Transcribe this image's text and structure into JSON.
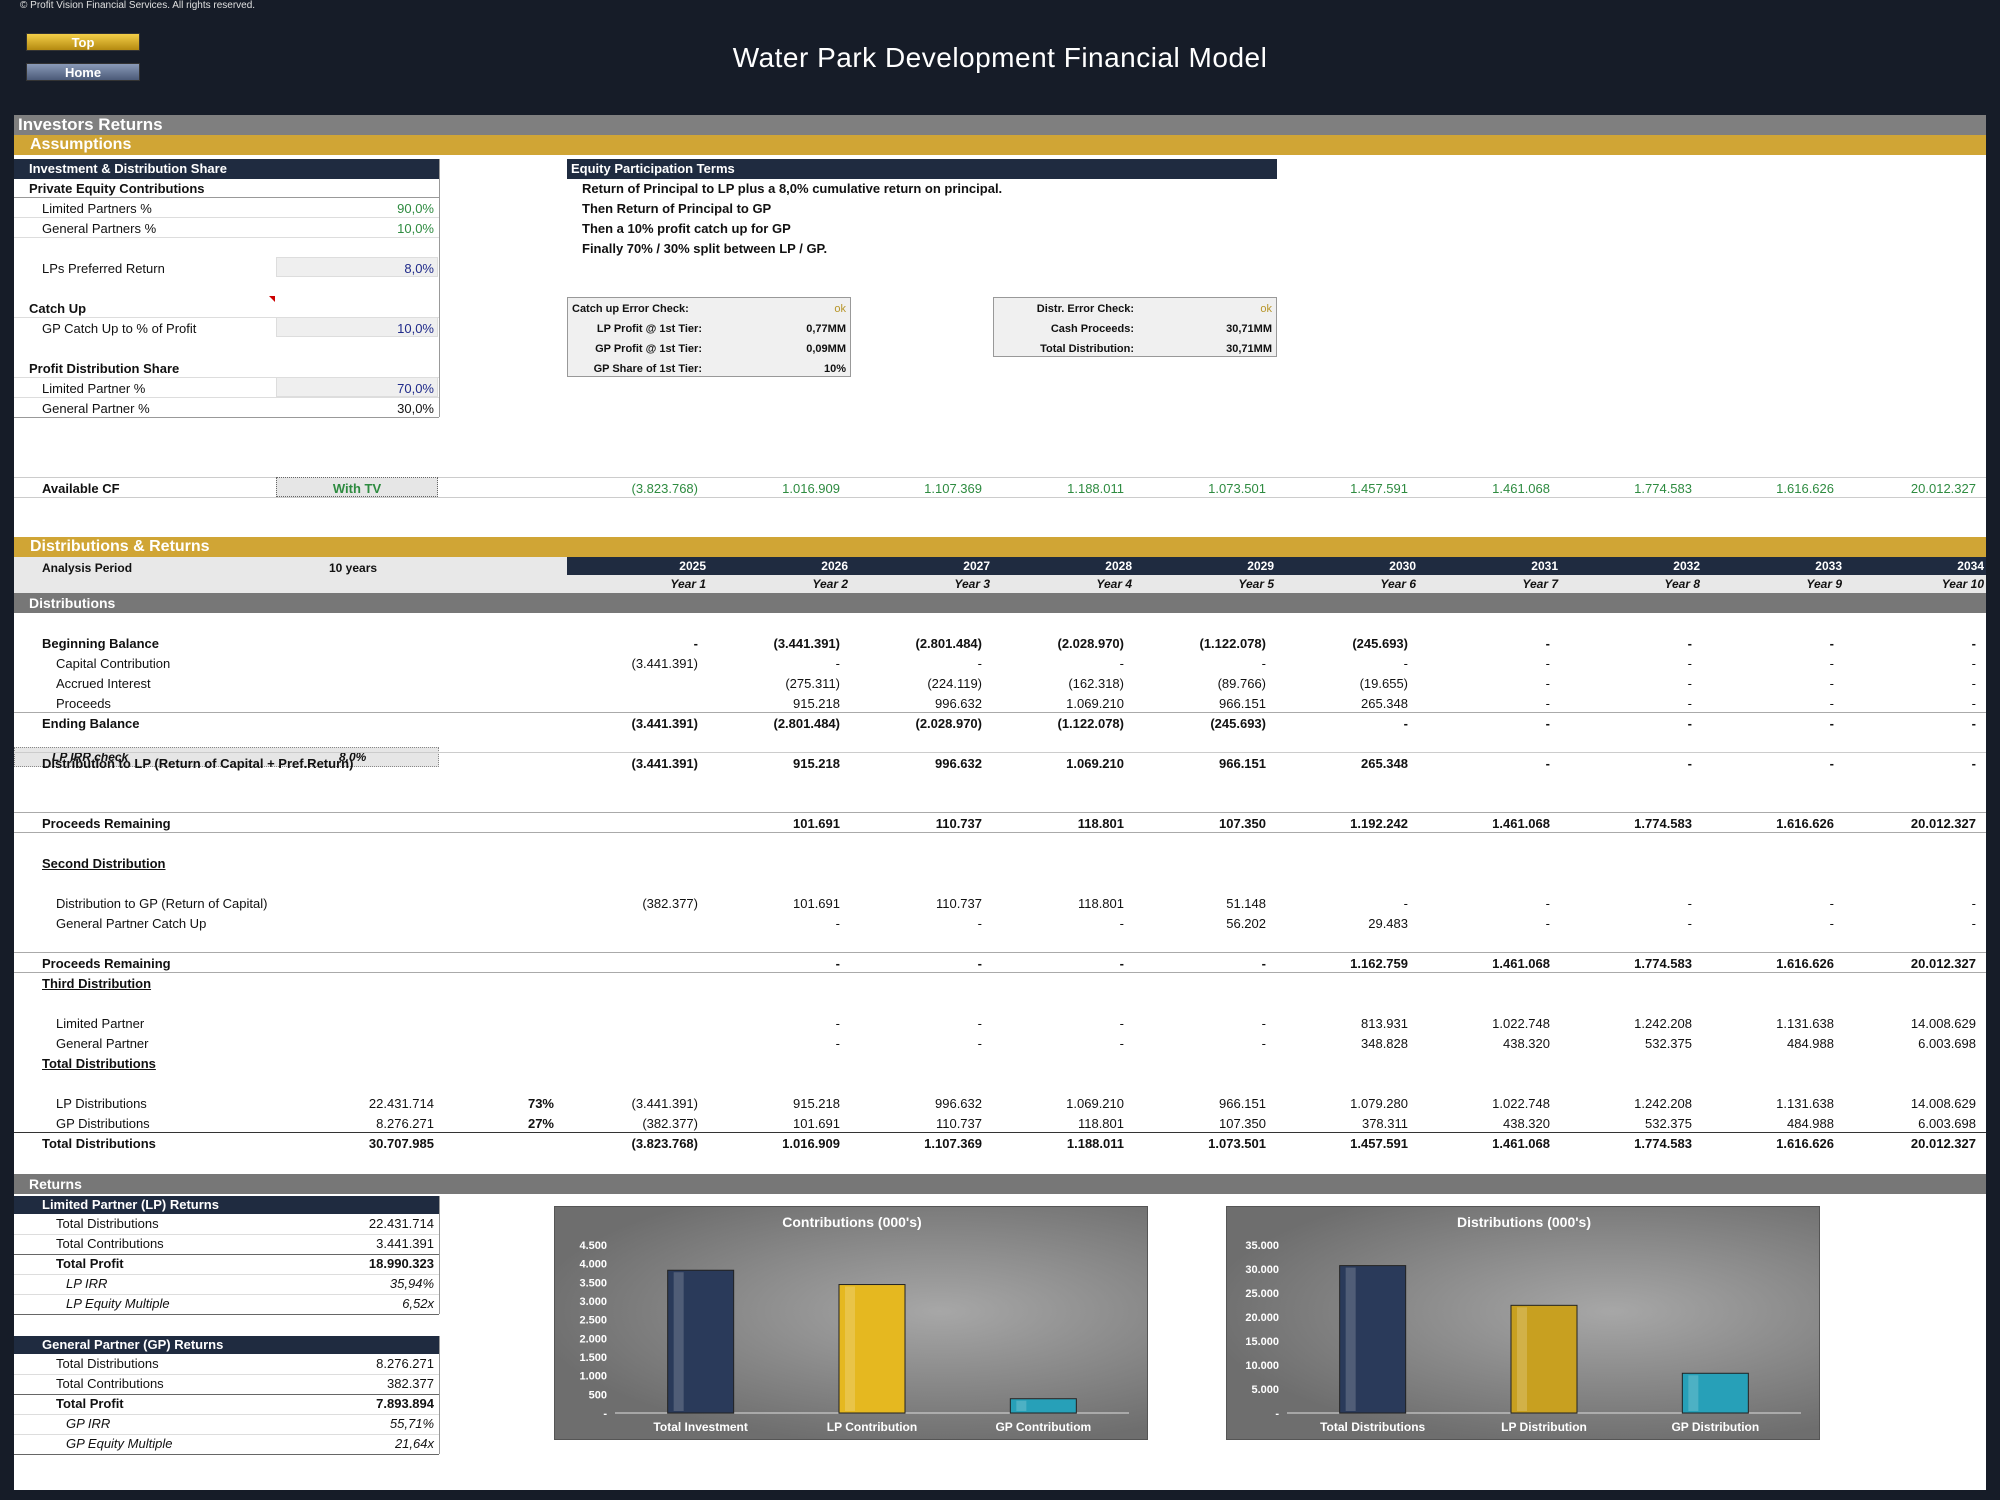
{
  "copyright": "© Profit Vision Financial Services. All rights reserved.",
  "nav": {
    "top": "Top",
    "home": "Home"
  },
  "title": "Water Park Development Financial Model",
  "section_title": "Investors Returns",
  "assumptions_band": "Assumptions",
  "left": {
    "header": "Investment & Distribution Share",
    "private_equity": "Private Equity Contributions",
    "lp_pct_label": "Limited Partners %",
    "lp_pct": "90,0%",
    "gp_pct_label": "General Partners %",
    "gp_pct": "10,0%",
    "pref_label": "LPs Preferred Return",
    "pref": "8,0%",
    "catchup": "Catch Up",
    "gp_catch_label": "GP Catch Up to % of Profit",
    "gp_catch": "10,0%",
    "profit_share": "Profit Distribution Share",
    "lp_share_label": "Limited Partner %",
    "lp_share": "70,0%",
    "gp_share_label": "General Partner %",
    "gp_share": "30,0%"
  },
  "terms": {
    "header": "Equity Participation Terms",
    "lines": [
      "Return of Principal to LP plus a 8,0% cumulative return on principal.",
      "Then Return of Principal to GP",
      "Then a 10% profit catch up for GP",
      "Finally 70% / 30% split between LP / GP."
    ]
  },
  "check1": [
    {
      "label": "Catch up Error Check:",
      "value": "ok"
    },
    {
      "label": "LP Profit @ 1st Tier:",
      "value": "0,77MM"
    },
    {
      "label": "GP Profit @ 1st Tier:",
      "value": "0,09MM"
    },
    {
      "label": "GP Share of 1st Tier:",
      "value": "10%"
    }
  ],
  "check2": [
    {
      "label": "Distr. Error Check:",
      "value": "ok"
    },
    {
      "label": "Cash Proceeds:",
      "value": "30,71MM"
    },
    {
      "label": "Total Distribution:",
      "value": "30,71MM"
    }
  ],
  "available_cf": {
    "label": "Available CF",
    "option": "With TV",
    "values": [
      "(3.823.768)",
      "1.016.909",
      "1.107.369",
      "1.188.011",
      "1.073.501",
      "1.457.591",
      "1.461.068",
      "1.774.583",
      "1.616.626",
      "20.012.327"
    ]
  },
  "dist_band": "Distributions & Returns",
  "analysis": {
    "label": "Analysis Period",
    "value": "10 years"
  },
  "years": [
    "2025",
    "2026",
    "2027",
    "2028",
    "2029",
    "2030",
    "2031",
    "2032",
    "2033",
    "2034"
  ],
  "year_labels": [
    "Year 1",
    "Year 2",
    "Year 3",
    "Year 4",
    "Year 5",
    "Year 6",
    "Year 7",
    "Year 8",
    "Year 9",
    "Year 10"
  ],
  "distributions_band": "Distributions",
  "rows": [
    {
      "label": "Beginning Balance",
      "bold": true,
      "indent": 0,
      "vals": [
        "-",
        "(3.441.391)",
        "(2.801.484)",
        "(2.028.970)",
        "(1.122.078)",
        "(245.693)",
        "-",
        "-",
        "-",
        "-"
      ]
    },
    {
      "label": "Capital Contribution",
      "indent": 1,
      "vals": [
        "(3.441.391)",
        "-",
        "-",
        "-",
        "-",
        "-",
        "-",
        "-",
        "-",
        "-"
      ]
    },
    {
      "label": "Accrued Interest",
      "indent": 1,
      "vals": [
        "",
        "(275.311)",
        "(224.119)",
        "(162.318)",
        "(89.766)",
        "(19.655)",
        "-",
        "-",
        "-",
        "-"
      ]
    },
    {
      "label": "Proceeds",
      "indent": 1,
      "vals": [
        "",
        "915.218",
        "996.632",
        "1.069.210",
        "966.151",
        "265.348",
        "-",
        "-",
        "-",
        "-"
      ]
    },
    {
      "label": "Ending Balance",
      "bold": true,
      "indent": 0,
      "vals": [
        "(3.441.391)",
        "(2.801.484)",
        "(2.028.970)",
        "(1.122.078)",
        "(245.693)",
        "-",
        "-",
        "-",
        "-",
        "-"
      ]
    },
    {
      "label": "Distribution to LP (Return of Capital + Pref.Return)",
      "bold": true,
      "indent": 0,
      "vals": [
        "(3.441.391)",
        "915.218",
        "996.632",
        "1.069.210",
        "966.151",
        "265.348",
        "-",
        "-",
        "-",
        "-"
      ]
    },
    {
      "label": "Proceeds Remaining",
      "bold": true,
      "indent": 0,
      "vals": [
        "",
        "101.691",
        "110.737",
        "118.801",
        "107.350",
        "1.192.242",
        "1.461.068",
        "1.774.583",
        "1.616.626",
        "20.012.327"
      ]
    },
    {
      "label": "Distribution to GP (Return of Capital)",
      "indent": 1,
      "vals": [
        "(382.377)",
        "101.691",
        "110.737",
        "118.801",
        "51.148",
        "-",
        "-",
        "-",
        "-",
        "-"
      ]
    },
    {
      "label": "General Partner Catch Up",
      "indent": 1,
      "vals": [
        "",
        "-",
        "-",
        "-",
        "56.202",
        "29.483",
        "-",
        "-",
        "-",
        "-"
      ]
    },
    {
      "label": "Proceeds Remaining",
      "bold": true,
      "indent": 0,
      "vals": [
        "",
        "-",
        "-",
        "-",
        "-",
        "1.162.759",
        "1.461.068",
        "1.774.583",
        "1.616.626",
        "20.012.327"
      ]
    },
    {
      "label": "Limited Partner",
      "indent": 1,
      "vals": [
        "",
        "-",
        "-",
        "-",
        "-",
        "813.931",
        "1.022.748",
        "1.242.208",
        "1.131.638",
        "14.008.629"
      ]
    },
    {
      "label": "General Partner",
      "indent": 1,
      "vals": [
        "",
        "-",
        "-",
        "-",
        "-",
        "348.828",
        "438.320",
        "532.375",
        "484.988",
        "6.003.698"
      ]
    },
    {
      "label": "LP Distributions",
      "indent": 1,
      "total": "22.431.714",
      "pct": "73%",
      "vals": [
        "(3.441.391)",
        "915.218",
        "996.632",
        "1.069.210",
        "966.151",
        "1.079.280",
        "1.022.748",
        "1.242.208",
        "1.131.638",
        "14.008.629"
      ]
    },
    {
      "label": "GP Distributions",
      "indent": 1,
      "total": "8.276.271",
      "pct": "27%",
      "vals": [
        "(382.377)",
        "101.691",
        "110.737",
        "118.801",
        "107.350",
        "378.311",
        "438.320",
        "532.375",
        "484.988",
        "6.003.698"
      ]
    },
    {
      "label": "Total Distributions",
      "bold": true,
      "indent": 0,
      "total": "30.707.985",
      "vals": [
        "(3.823.768)",
        "1.016.909",
        "1.107.369",
        "1.188.011",
        "1.073.501",
        "1.457.591",
        "1.461.068",
        "1.774.583",
        "1.616.626",
        "20.012.327"
      ]
    }
  ],
  "lp_irr_check": {
    "label": "LP IRR check",
    "value": "8,0%"
  },
  "second_dist": "Second Distribution",
  "third_dist": "Third Distribution",
  "total_dist_heading": "Total Distributions",
  "returns_band": "Returns",
  "lp_returns": {
    "header": "Limited Partner (LP) Returns",
    "rows": [
      {
        "label": "Total Distributions",
        "value": "22.431.714"
      },
      {
        "label": "Total Contributions",
        "value": "3.441.391"
      },
      {
        "label": "Total Profit",
        "value": "18.990.323",
        "bold": true
      },
      {
        "label": "LP IRR",
        "value": "35,94%",
        "italic": true
      },
      {
        "label": "LP Equity Multiple",
        "value": "6,52x",
        "italic": true
      }
    ]
  },
  "gp_returns": {
    "header": "General Partner (GP) Returns",
    "rows": [
      {
        "label": "Total Distributions",
        "value": "8.276.271"
      },
      {
        "label": "Total Contributions",
        "value": "382.377"
      },
      {
        "label": "Total Profit",
        "value": "7.893.894",
        "bold": true
      },
      {
        "label": "GP IRR",
        "value": "55,71%",
        "italic": true
      },
      {
        "label": "GP Equity Multiple",
        "value": "21,64x",
        "italic": true
      }
    ]
  },
  "chart_data": [
    {
      "type": "bar",
      "title": "Contributions (000's)",
      "categories": [
        "Total Investment",
        "LP Contribution",
        "GP Contributiom"
      ],
      "values": [
        3824,
        3441,
        382
      ],
      "ylim": [
        0,
        4500
      ],
      "yticks": [
        "-",
        "500",
        "1.000",
        "1.500",
        "2.000",
        "2.500",
        "3.000",
        "3.500",
        "4.000",
        "4.500"
      ],
      "colors": [
        "#2a3a5a",
        "#e5b820",
        "#27a0b8"
      ]
    },
    {
      "type": "bar",
      "title": "Distributions (000's)",
      "categories": [
        "Total Distributions",
        "LP Distribution",
        "GP Distribution"
      ],
      "values": [
        30708,
        22432,
        8276
      ],
      "ylim": [
        0,
        35000
      ],
      "yticks": [
        "-",
        "5.000",
        "10.000",
        "15.000",
        "20.000",
        "25.000",
        "30.000",
        "35.000"
      ],
      "colors": [
        "#2a3a5a",
        "#c8a020",
        "#27a0b8"
      ]
    }
  ]
}
